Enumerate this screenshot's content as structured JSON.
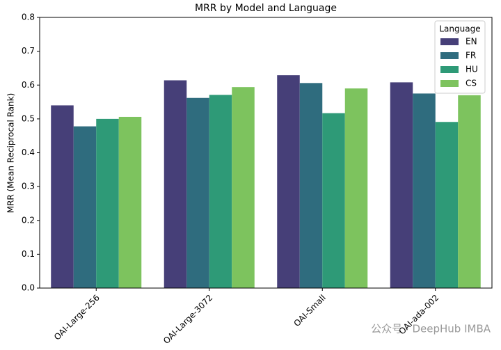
{
  "chart_data": {
    "type": "grouped-bar",
    "title": "MRR by Model and Language",
    "y_label": "MRR  (Mean Reciprocal Rank)",
    "categories": [
      "OAI-Large-256",
      "OAI-Large-3072",
      "OAI-Small",
      "OAI-ada-002"
    ],
    "series": [
      {
        "name": "EN",
        "color": "#463f78",
        "values": [
          0.54,
          0.614,
          0.629,
          0.608
        ]
      },
      {
        "name": "FR",
        "color": "#2f6c7e",
        "values": [
          0.478,
          0.562,
          0.606,
          0.575
        ]
      },
      {
        "name": "HU",
        "color": "#2e9a77",
        "values": [
          0.5,
          0.571,
          0.517,
          0.491
        ]
      },
      {
        "name": "CS",
        "color": "#7dc35e",
        "values": [
          0.506,
          0.594,
          0.59,
          0.57
        ]
      }
    ],
    "legend_title": "Language",
    "legend_position": "upper right",
    "ylim": [
      0,
      0.8
    ],
    "yticks": [
      {
        "value": 0,
        "label": "0.0"
      },
      0.1,
      0.2,
      0.3,
      0.4,
      0.5,
      0.6,
      0.7,
      0.8
    ]
  },
  "watermark": "公众号 · DeepHub IMBA"
}
